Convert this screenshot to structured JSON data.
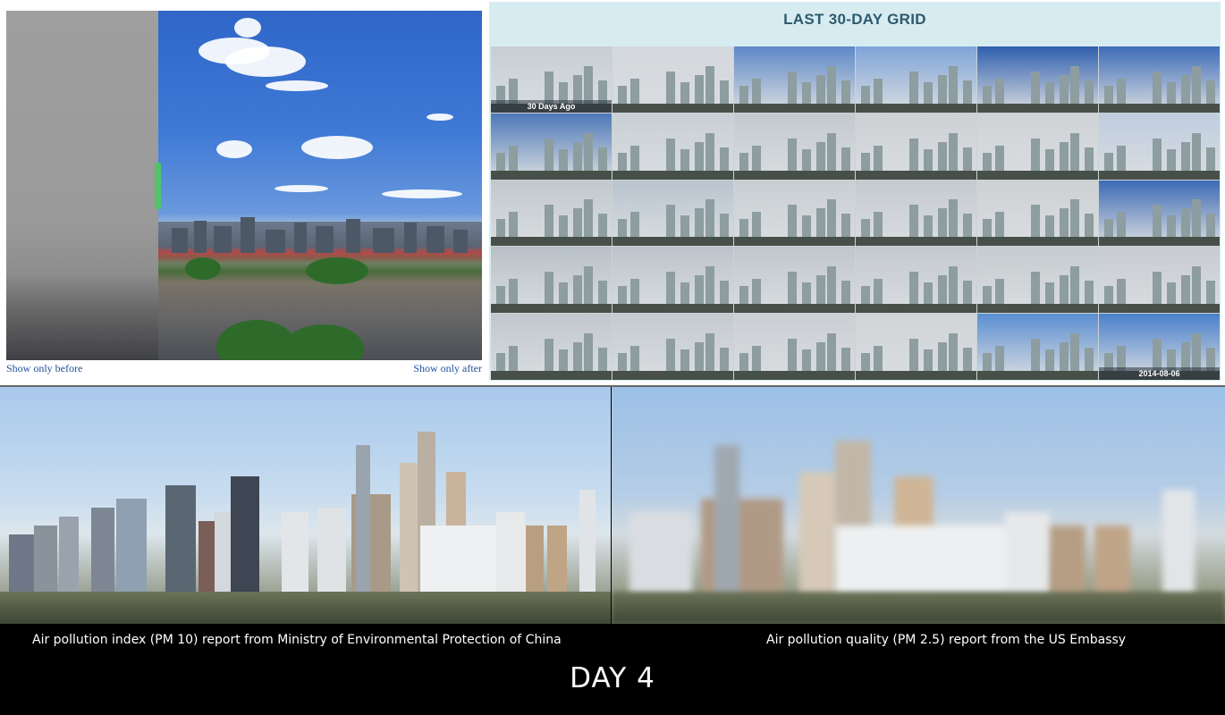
{
  "before_after": {
    "show_before_label": "Show only before",
    "show_after_label": "Show only after"
  },
  "grid": {
    "title": "LAST 30-DAY GRID",
    "first_cell_label": "30 Days Ago",
    "last_cell_label": "2014-08-06",
    "rows": 5,
    "columns": 6
  },
  "comparison": {
    "left_caption": "Air pollution index (PM 10) report from Ministry of Environmental Protection of China",
    "right_caption": "Air pollution quality (PM 2.5) report from the US Embassy",
    "day_label": "DAY 4"
  },
  "colors": {
    "link": "#1f4f9a",
    "grid_title": "#2d5a6e",
    "grid_background": "#d7ecf1",
    "slider_handle": "#4fc46b",
    "caption_text": "#ffffff",
    "caption_background": "#000000"
  }
}
